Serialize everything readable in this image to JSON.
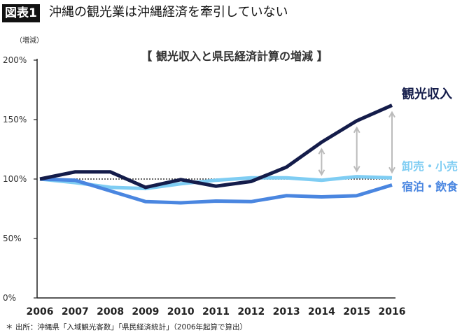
{
  "header": {
    "badge": "図表1",
    "title": "沖縄の観光業は沖縄経済を牽引していない"
  },
  "chart_data": {
    "type": "line",
    "title": "【 観光収入と県民経済計算の増減 】",
    "ylabel": "（増減）",
    "x": [
      2006,
      2007,
      2008,
      2009,
      2010,
      2011,
      2012,
      2013,
      2014,
      2015,
      2016
    ],
    "ylim": [
      0,
      200
    ],
    "yticks": [
      0,
      50,
      100,
      150,
      200
    ],
    "ytick_labels": [
      "0%",
      "50%",
      "100%",
      "150%",
      "200%"
    ],
    "grid": false,
    "reference_line": 100,
    "series": [
      {
        "name": "観光収入",
        "color": "#141c4a",
        "values": [
          100,
          106,
          106,
          93,
          99.5,
          94,
          98,
          110,
          131,
          149,
          162
        ]
      },
      {
        "name": "卸売・小売",
        "color": "#7fcdf3",
        "values": [
          100,
          97,
          93,
          92,
          96,
          99,
          101,
          101,
          99,
          102,
          101
        ]
      },
      {
        "name": "宿泊・飲食",
        "color": "#4a86e0",
        "values": [
          100,
          99,
          90,
          81,
          80,
          81.5,
          81,
          86,
          85,
          86,
          95
        ]
      }
    ],
    "gap_arrows_years": [
      2014,
      2015,
      2016
    ],
    "legend_placement": "right-inline"
  },
  "footnote": "＊ 出所：沖縄県「入域観光客数」「県民経済統計」（2006年起算で算出）"
}
